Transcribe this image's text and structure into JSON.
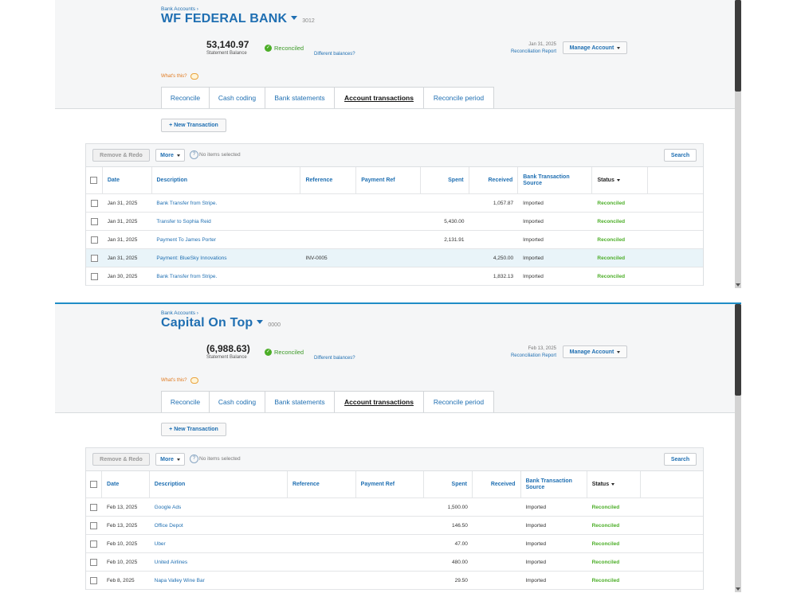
{
  "common": {
    "breadcrumb": "Bank Accounts ›",
    "statement_balance_label": "Statement Balance",
    "reconciled_label": "Reconciled",
    "different_balances": "Different balances?",
    "reconciliation_report": "Reconciliation Report",
    "manage_account": "Manage Account",
    "whats_this": "What's this?",
    "tabs": [
      "Reconcile",
      "Cash coding",
      "Bank statements",
      "Account transactions",
      "Reconcile period"
    ],
    "active_tab": "Account transactions",
    "new_transaction": "+ New Transaction",
    "remove_redo": "Remove & Redo",
    "more": "More",
    "no_items": "No items selected",
    "search": "Search",
    "columns": {
      "date": "Date",
      "description": "Description",
      "reference": "Reference",
      "payment_ref": "Payment Ref",
      "spent": "Spent",
      "received": "Received",
      "source": "Bank Transaction Source",
      "status": "Status"
    },
    "colors": {
      "link": "#1f6fb2",
      "reconciled": "#4cae28",
      "highlight": "#e9f4f9"
    }
  },
  "panels": [
    {
      "bank_name": "WF FEDERAL BANK",
      "account_number": "3012",
      "statement_balance": "53,140.97",
      "report_date": "Jan 31, 2025",
      "rows": [
        {
          "date": "Jan 31, 2025",
          "description": "Bank Transfer from Stripe.",
          "reference": "",
          "payment_ref": "",
          "spent": "",
          "received": "1,057.87",
          "source": "Imported",
          "status": "Reconciled"
        },
        {
          "date": "Jan 31, 2025",
          "description": "Transfer to Sophia Reid",
          "reference": "",
          "payment_ref": "",
          "spent": "5,430.00",
          "received": "",
          "source": "Imported",
          "status": "Reconciled"
        },
        {
          "date": "Jan 31, 2025",
          "description": "Payment To James Porter",
          "reference": "",
          "payment_ref": "",
          "spent": "2,131.91",
          "received": "",
          "source": "Imported",
          "status": "Reconciled"
        },
        {
          "date": "Jan 31, 2025",
          "description": "Payment: BlueSky Innovations",
          "reference": "INV-0005",
          "payment_ref": "",
          "spent": "",
          "received": "4,250.00",
          "source": "Imported",
          "status": "Reconciled"
        },
        {
          "date": "Jan 30, 2025",
          "description": "Bank Transfer from Stripe.",
          "reference": "",
          "payment_ref": "",
          "spent": "",
          "received": "1,832.13",
          "source": "Imported",
          "status": "Reconciled"
        }
      ]
    },
    {
      "bank_name": "Capital On Top",
      "account_number": "0000",
      "statement_balance": "(6,988.63)",
      "report_date": "Feb 13, 2025",
      "rows": [
        {
          "date": "Feb 13, 2025",
          "description": "Google Ads",
          "reference": "",
          "payment_ref": "",
          "spent": "1,500.00",
          "received": "",
          "source": "Imported",
          "status": "Reconciled"
        },
        {
          "date": "Feb 13, 2025",
          "description": "Office Depot",
          "reference": "",
          "payment_ref": "",
          "spent": "146.50",
          "received": "",
          "source": "Imported",
          "status": "Reconciled"
        },
        {
          "date": "Feb 10, 2025",
          "description": "Uber",
          "reference": "",
          "payment_ref": "",
          "spent": "47.00",
          "received": "",
          "source": "Imported",
          "status": "Reconciled"
        },
        {
          "date": "Feb 10, 2025",
          "description": "United Airlines",
          "reference": "",
          "payment_ref": "",
          "spent": "480.00",
          "received": "",
          "source": "Imported",
          "status": "Reconciled"
        },
        {
          "date": "Feb 8, 2025",
          "description": "Napa Valley Wine Bar",
          "reference": "",
          "payment_ref": "",
          "spent": "29.50",
          "received": "",
          "source": "Imported",
          "status": "Reconciled"
        }
      ]
    }
  ]
}
